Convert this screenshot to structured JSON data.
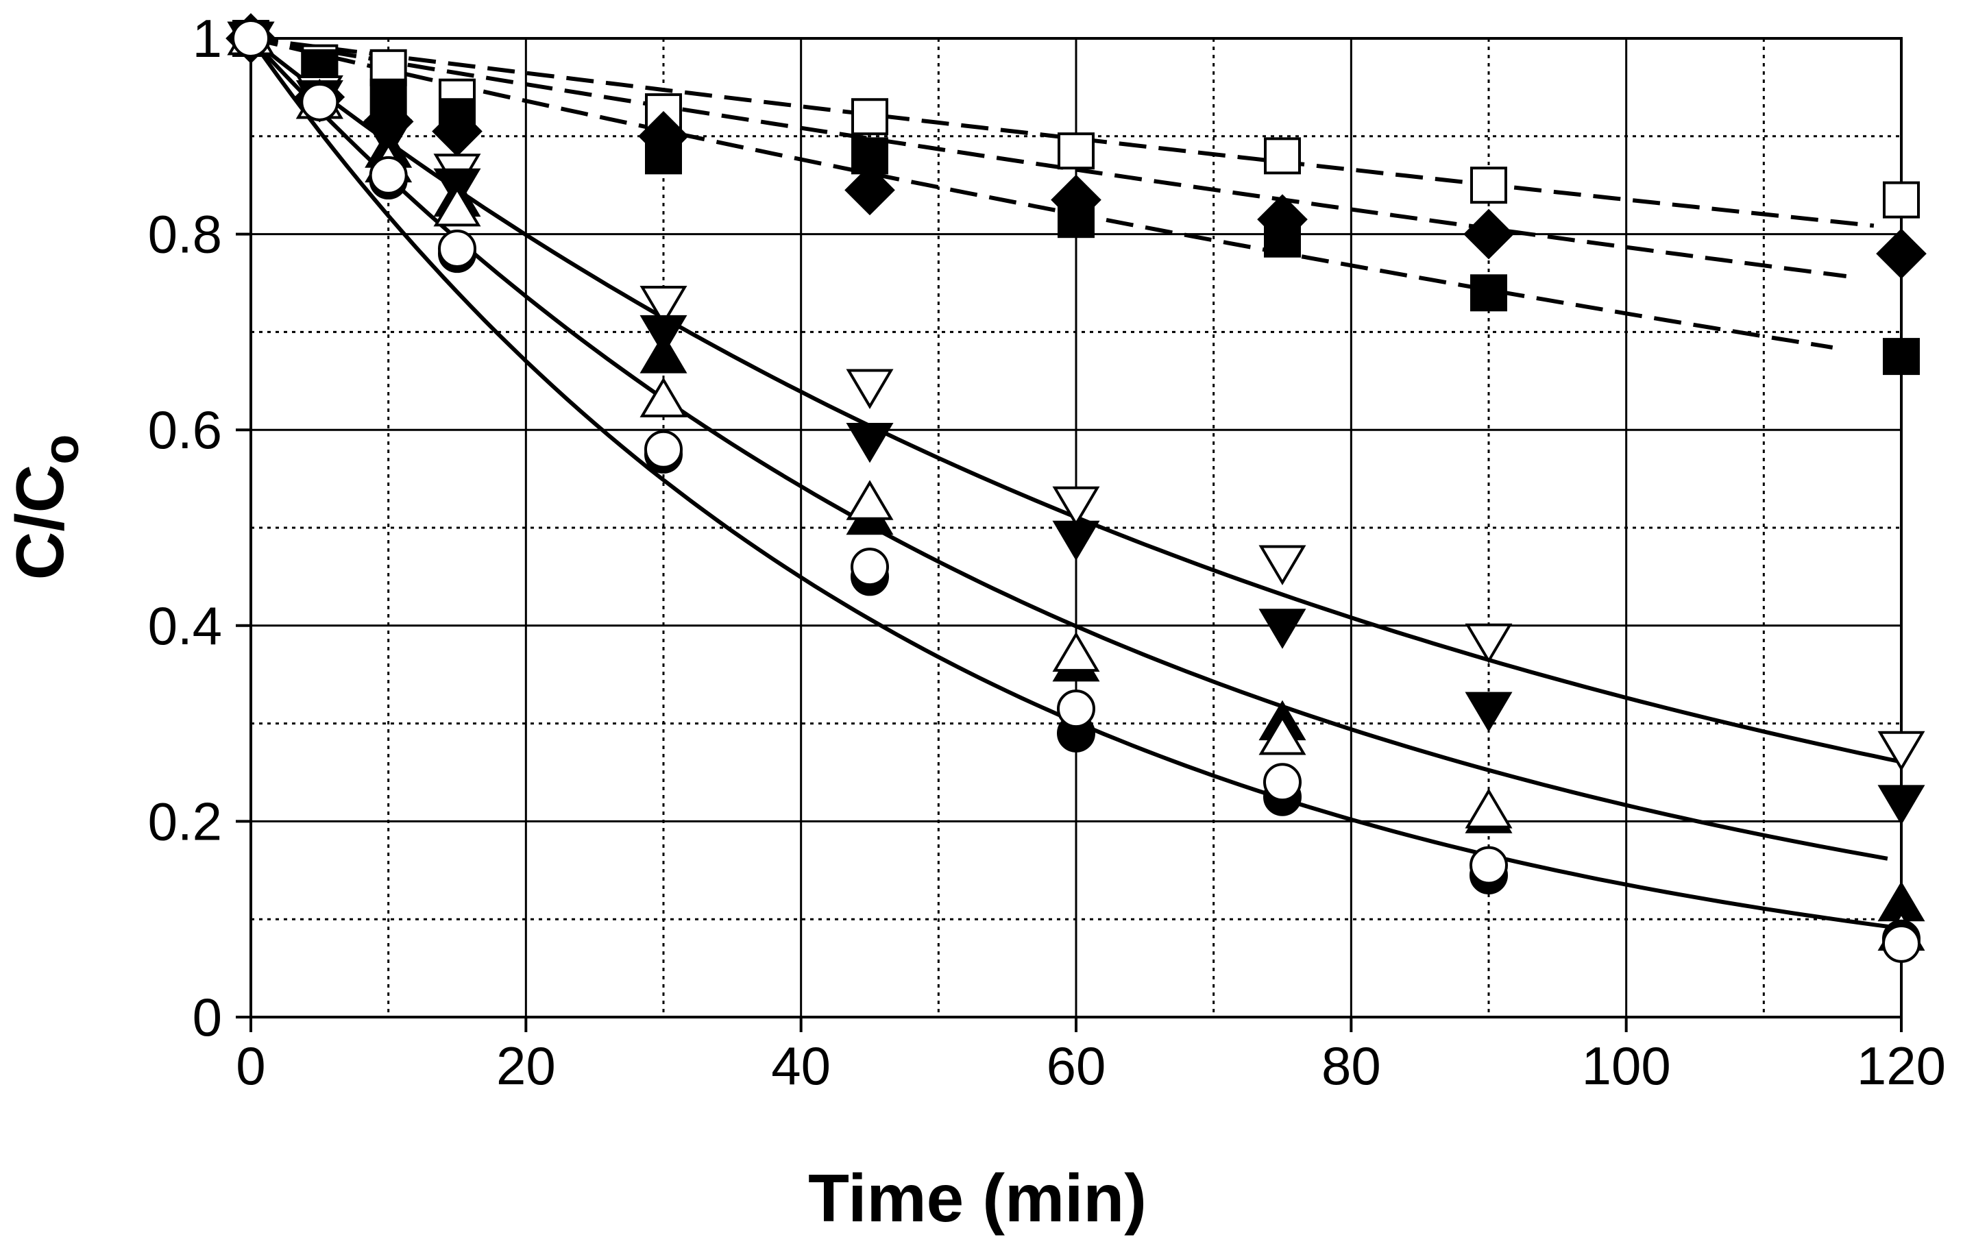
{
  "chart_data": {
    "type": "scatter",
    "title": "",
    "xlabel": "Time (min)",
    "ylabel_main": "C/C",
    "ylabel_sub": "o",
    "xlim": [
      0,
      120
    ],
    "ylim": [
      0,
      1
    ],
    "grid": "major solid, minor dotted",
    "x_ticks": [
      0,
      20,
      40,
      60,
      80,
      100,
      120
    ],
    "x_tick_labels": [
      "0",
      "20",
      "40",
      "60",
      "80",
      "100",
      "120"
    ],
    "y_ticks": [
      0,
      0.2,
      0.4,
      0.6,
      0.8,
      1
    ],
    "y_tick_labels": [
      "0",
      "0.2",
      "0.4",
      "0.6",
      "0.8",
      "1"
    ],
    "x_minor_ticks": [
      10,
      30,
      50,
      70,
      90,
      110
    ],
    "y_minor_ticks": [
      0.1,
      0.3,
      0.5,
      0.7,
      0.9
    ],
    "series": [
      {
        "name": "open-square",
        "marker": "square",
        "filled": false,
        "x": [
          0,
          5,
          10,
          15,
          30,
          45,
          60,
          75,
          90,
          120
        ],
        "y": [
          1.0,
          0.975,
          0.97,
          0.94,
          0.925,
          0.92,
          0.885,
          0.88,
          0.85,
          0.835
        ]
      },
      {
        "name": "filled-diamond",
        "marker": "diamond",
        "filled": true,
        "x": [
          0,
          5,
          10,
          15,
          30,
          45,
          60,
          75,
          90,
          120
        ],
        "y": [
          1.0,
          0.94,
          0.915,
          0.905,
          0.9,
          0.845,
          0.835,
          0.815,
          0.8,
          0.78
        ]
      },
      {
        "name": "filled-square",
        "marker": "square",
        "filled": true,
        "x": [
          0,
          5,
          10,
          15,
          30,
          45,
          60,
          75,
          90,
          120
        ],
        "y": [
          1.0,
          0.97,
          0.94,
          0.92,
          0.88,
          0.88,
          0.815,
          0.795,
          0.74,
          0.675
        ]
      },
      {
        "name": "open-triangle-down",
        "marker": "triangle-down",
        "filled": false,
        "x": [
          0,
          5,
          10,
          15,
          30,
          45,
          60,
          75,
          90,
          120
        ],
        "y": [
          1.0,
          0.945,
          0.9,
          0.865,
          0.73,
          0.645,
          0.525,
          0.465,
          0.385,
          0.275
        ]
      },
      {
        "name": "filled-triangle-down",
        "marker": "triangle-down",
        "filled": true,
        "x": [
          0,
          5,
          10,
          15,
          30,
          45,
          60,
          75,
          90,
          120
        ],
        "y": [
          1.0,
          0.94,
          0.9,
          0.85,
          0.7,
          0.59,
          0.49,
          0.4,
          0.315,
          0.22
        ]
      },
      {
        "name": "filled-triangle-up",
        "marker": "triangle-up",
        "filled": true,
        "x": [
          0,
          5,
          10,
          15,
          30,
          45,
          60,
          75,
          90,
          120
        ],
        "y": [
          1.0,
          0.935,
          0.885,
          0.835,
          0.675,
          0.51,
          0.36,
          0.3,
          0.205,
          0.115
        ]
      },
      {
        "name": "open-triangle-up",
        "marker": "triangle-up",
        "filled": false,
        "x": [
          0,
          5,
          10,
          15,
          30,
          45,
          60,
          75,
          90,
          120
        ],
        "y": [
          1.0,
          0.935,
          0.87,
          0.825,
          0.63,
          0.525,
          0.37,
          0.285,
          0.21,
          0.085
        ]
      },
      {
        "name": "filled-circle",
        "marker": "circle",
        "filled": true,
        "x": [
          0,
          5,
          10,
          15,
          30,
          45,
          60,
          75,
          90,
          120
        ],
        "y": [
          1.0,
          0.935,
          0.855,
          0.78,
          0.575,
          0.45,
          0.29,
          0.225,
          0.145,
          0.08
        ]
      },
      {
        "name": "open-circle",
        "marker": "circle",
        "filled": false,
        "x": [
          0,
          5,
          10,
          15,
          30,
          45,
          60,
          75,
          90,
          120
        ],
        "y": [
          1.0,
          0.935,
          0.86,
          0.785,
          0.58,
          0.46,
          0.315,
          0.24,
          0.155,
          0.075
        ]
      }
    ],
    "fit_curves": [
      {
        "name": "fit-open-square",
        "style": "dashed",
        "k": 0.0018,
        "x_end": 118
      },
      {
        "name": "fit-filled-diamond",
        "style": "dashed",
        "k": 0.0024,
        "x_end": 116
      },
      {
        "name": "fit-filled-square",
        "style": "dashed",
        "k": 0.0033,
        "x_end": 115
      },
      {
        "name": "fit-triangle-down",
        "style": "solid",
        "k": 0.0112,
        "x_end": 120
      },
      {
        "name": "fit-triangle-up",
        "style": "solid",
        "k": 0.0153,
        "x_end": 119
      },
      {
        "name": "fit-circle",
        "style": "solid",
        "k": 0.02,
        "x_end": 120
      }
    ]
  }
}
